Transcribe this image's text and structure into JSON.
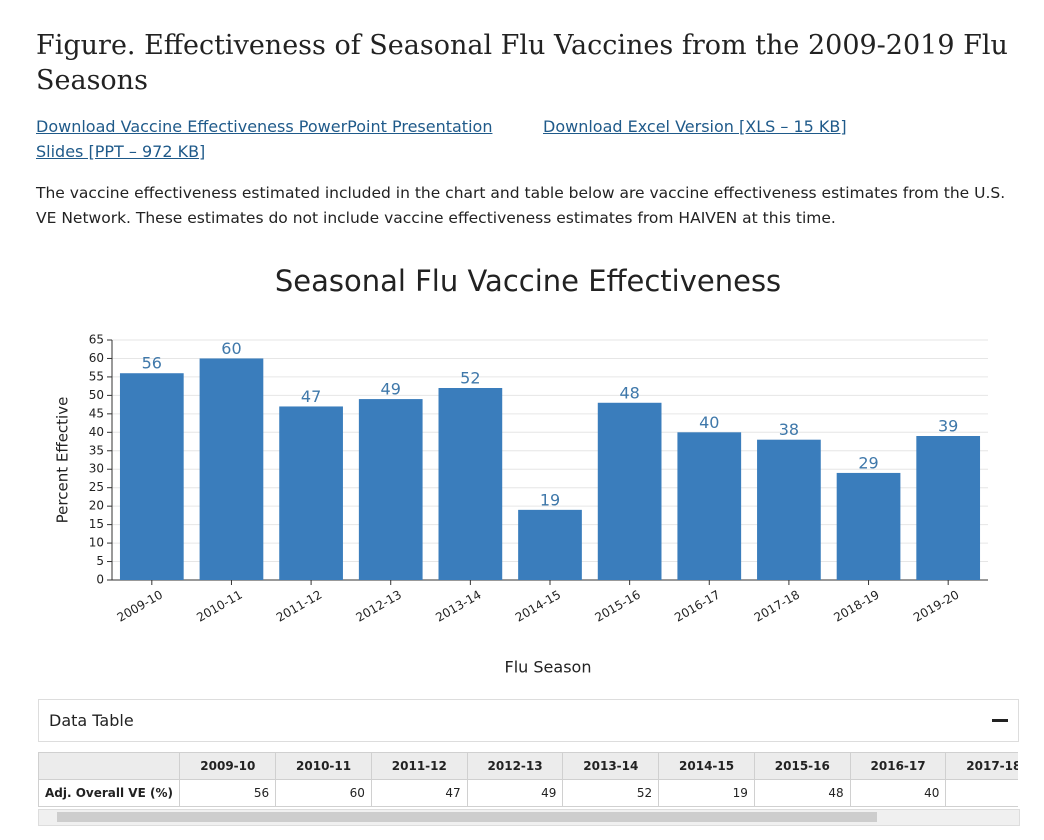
{
  "header": {
    "title": "Figure. Effectiveness of Seasonal Flu Vaccines from the 2009-2019 Flu Seasons"
  },
  "links": [
    "Download Vaccine Effectiveness PowerPoint Presentation Slides [PPT – 972 KB]",
    "Download Excel Version [XLS – 15 KB]"
  ],
  "intro": "The vaccine effectiveness estimated included in the chart and table below are vaccine effectiveness estimates from the U.S. VE Network. These estimates do not include vaccine effectiveness estimates from HAIVEN at this time.",
  "chart_data": {
    "type": "bar",
    "title": "Seasonal Flu Vaccine Effectiveness",
    "x_label": "Flu Season",
    "y_label": "Percent Effective",
    "categories": [
      "2009-10",
      "2010-11",
      "2011-12",
      "2012-13",
      "2013-14",
      "2014-15",
      "2015-16",
      "2016-17",
      "2017-18",
      "2018-19",
      "2019-20"
    ],
    "values": [
      56,
      60,
      47,
      49,
      52,
      19,
      48,
      40,
      38,
      29,
      39
    ],
    "color": "#3a7dbc",
    "label_color": "#3f78aa",
    "ylim": [
      0,
      65
    ],
    "yticks": [
      0,
      5,
      10,
      15,
      20,
      25,
      30,
      35,
      40,
      45,
      50,
      55,
      60,
      65
    ],
    "grid": true
  },
  "data_table": {
    "heading": "Data Table",
    "row_label": "Adj. Overall VE (%)"
  }
}
